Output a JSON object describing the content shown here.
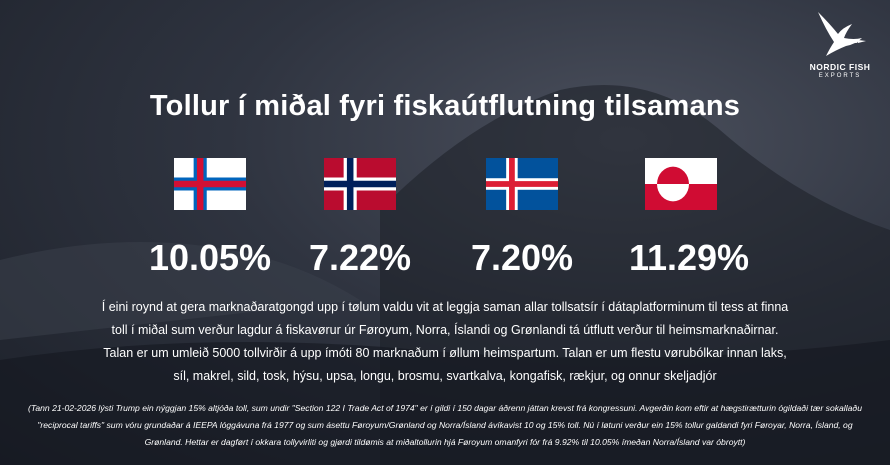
{
  "logo": {
    "name": "NORDIC FISH",
    "sub": "EXPORTS",
    "icon": "bird-icon"
  },
  "title": "Tollur í miðal fyri fiskaútflutning tilsamans",
  "countries": [
    {
      "flag": "faroe-flag",
      "value": "10.05%"
    },
    {
      "flag": "norway-flag",
      "value": "7.22%"
    },
    {
      "flag": "iceland-flag",
      "value": "7.20%"
    },
    {
      "flag": "greenland-flag",
      "value": "11.29%"
    }
  ],
  "body_text": "Í eini roynd at gera marknaðaratgongd upp í tølum valdu vit at leggja saman allar tollsatsír í dátaplatforminum til tess at finna toll í miðal sum verður lagdur á fiskavørur úr Føroyum, Norra, Íslandi og Grønlandi tá útflutt verður til heimsmarknaðirnar. Talan er um umleið 5000 tollvirðir á upp ímóti 80 marknaðum í øllum heimspartum. Talan er um flestu vørubólkar innan laks, síl, makrel, sild, tosk, hýsu, upsa, longu, brosmu, svartkalva, kongafisk, rækjur, og onnur skeljadjór",
  "footnote": "(Tann 21-02-2026 lýsti Trump ein nýggjan 15% altjóða toll, sum undir \"Section 122 I Trade Act of 1974\" er í gildi í 150 dagar áðrenn játtan krevst frá kongressuni. Avgerðin kom eftir at hægstirætturin ógildaði tær sokallaðu \"reciprocal tariffs\" sum vóru grundaðar á IEEPA lóggávuna frá 1977 og sum ásettu Føroyum/Grønland og Norra/Ísland ávíkavist 10 og 15% toll. Nú í løtuni verður ein 15% tollur galdandi fyri Føroyar, Norra, Ísland, og Grønland. Hettar er dagført í okkara tollyvirliti og gjørdi tildømis at miðaltollurin hjá Føroyum omanfyri fór frá 9.92% til 10.05% ímeðan Norra/Ísland var óbroytt)",
  "colors": {
    "background": "#2f3440",
    "text": "#ffffff",
    "faroe_red": "#d21034",
    "faroe_blue": "#0065bd",
    "norway_red": "#ba0c2f",
    "norway_blue": "#00205b",
    "iceland_blue": "#02529c",
    "iceland_red": "#dc1e35",
    "greenland_red": "#d00c33"
  }
}
